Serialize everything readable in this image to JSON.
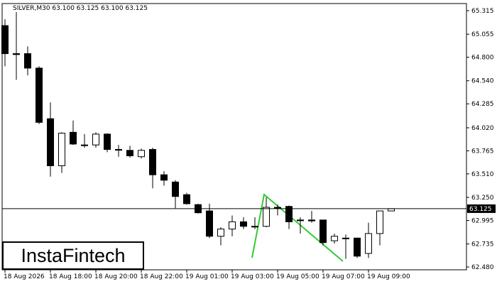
{
  "header": {
    "text": "SILVER,M30  63.100 63.125 63.100 63.125"
  },
  "logo": {
    "text": "InstaFintech"
  },
  "chart_data": {
    "type": "candlestick",
    "categories": [
      "18 Aug 2026",
      null,
      null,
      null,
      "18 Aug 18:00",
      null,
      null,
      null,
      "18 Aug 20:00",
      null,
      null,
      null,
      "18 Aug 22:00",
      null,
      null,
      null,
      "19 Aug 01:00",
      null,
      null,
      null,
      "19 Aug 03:00",
      null,
      null,
      null,
      "19 Aug 05:00",
      null,
      null,
      null,
      "19 Aug 07:00",
      null,
      null,
      null,
      "19 Aug 09:00",
      null,
      null
    ],
    "open": [
      65.15,
      64.84,
      64.84,
      64.68,
      64.12,
      63.6,
      63.97,
      63.83,
      63.83,
      63.95,
      63.78,
      63.77,
      63.7,
      63.78,
      63.5,
      63.42,
      63.28,
      63.17,
      63.1,
      62.82,
      62.9,
      62.98,
      62.93,
      62.93,
      63.14,
      63.15,
      63.0,
      63.0,
      63.0,
      62.77,
      62.8,
      62.8,
      62.63,
      62.85,
      63.1
    ],
    "high": [
      65.22,
      65.3,
      64.92,
      64.7,
      64.3,
      63.97,
      64.1,
      63.95,
      63.97,
      63.96,
      63.83,
      63.82,
      63.79,
      63.8,
      63.54,
      63.44,
      63.3,
      63.18,
      63.18,
      62.92,
      63.05,
      63.03,
      63.03,
      63.25,
      63.17,
      63.16,
      63.03,
      63.1,
      63.0,
      62.85,
      62.84,
      62.8,
      62.97,
      63.1,
      63.125
    ],
    "low": [
      64.7,
      64.55,
      64.6,
      64.06,
      63.48,
      63.52,
      63.83,
      63.8,
      63.8,
      63.75,
      63.7,
      63.69,
      63.68,
      63.35,
      63.38,
      63.13,
      63.17,
      63.07,
      62.8,
      62.72,
      62.82,
      62.9,
      62.9,
      62.92,
      63.05,
      62.9,
      62.85,
      62.97,
      62.72,
      62.74,
      62.57,
      62.58,
      62.58,
      62.72,
      63.1
    ],
    "close": [
      64.84,
      64.83,
      64.68,
      64.08,
      63.6,
      63.96,
      63.84,
      63.83,
      63.95,
      63.78,
      63.78,
      63.71,
      63.77,
      63.5,
      63.44,
      63.26,
      63.18,
      63.08,
      62.82,
      62.9,
      62.98,
      62.93,
      62.93,
      63.14,
      63.14,
      62.98,
      63.0,
      62.99,
      62.75,
      62.82,
      62.8,
      62.6,
      62.85,
      63.1,
      63.125
    ],
    "up_color": "#ffffff",
    "down_color": "#000000",
    "current_price": 63.125,
    "ylim": [
      62.449,
      65.394
    ],
    "yticks": [
      65.315,
      65.055,
      {
        "value": 64.8,
        "label": "64.800"
      },
      {
        "value": 64.54,
        "label": "64.540"
      },
      64.285,
      {
        "value": 64.02,
        "label": "64.020"
      },
      63.765,
      {
        "value": 63.51,
        "label": "63.510"
      },
      {
        "value": 63.25,
        "label": "63.250"
      },
      62.995,
      62.735,
      {
        "value": 62.48,
        "label": "62.480"
      }
    ]
  }
}
